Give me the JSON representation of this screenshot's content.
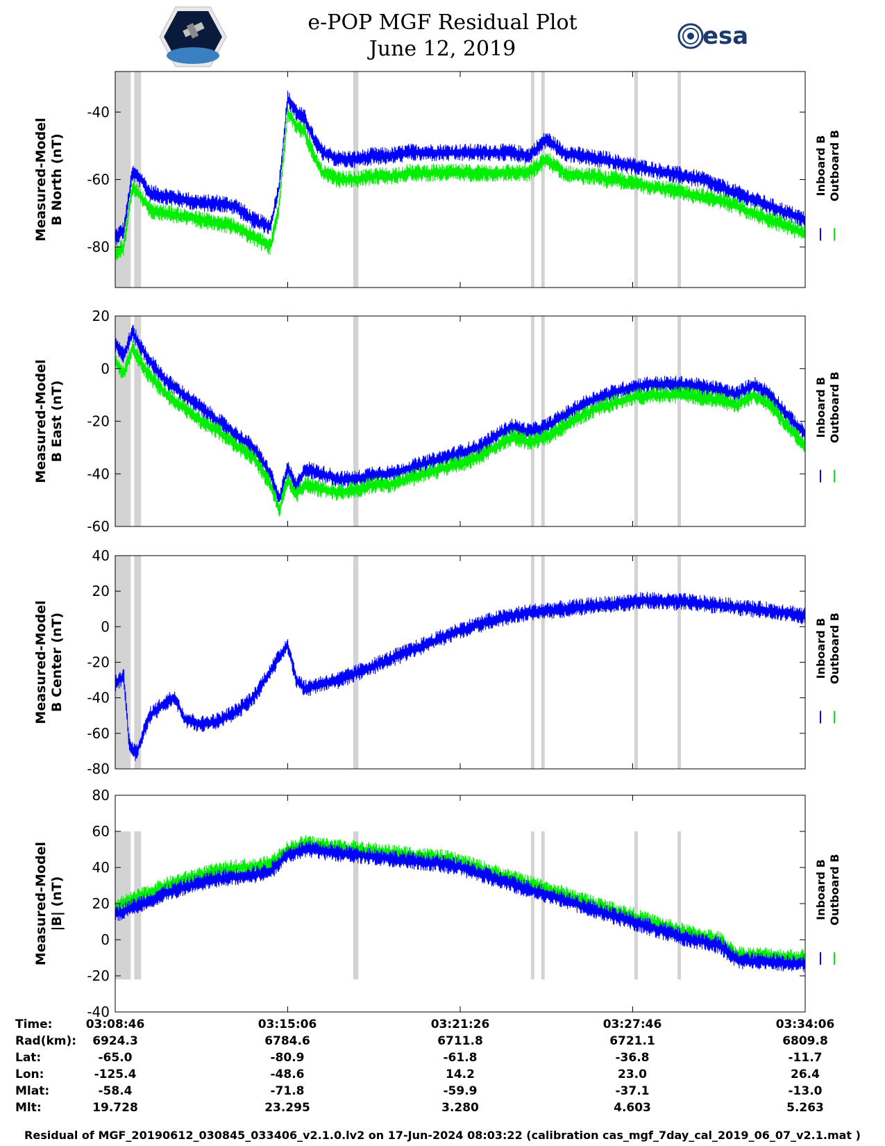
{
  "header": {
    "title": "e-POP MGF Residual Plot",
    "date": "June 12, 2019",
    "logo_right_text": "esa",
    "logo_left_icon": "cassiope-mission-logo-icon"
  },
  "legend": {
    "inboard": "Inboard B",
    "outboard": "Outboard B",
    "inboard_color": "#0000ff",
    "outboard_color": "#00ee00"
  },
  "chart_data": [
    {
      "type": "line",
      "ylabel_line1": "Measured-Model",
      "ylabel_line2": "B North (nT)",
      "ylim": [
        -92,
        -28
      ],
      "yticks": [
        -40,
        -60,
        -80
      ],
      "series": [
        {
          "name": "Inboard B",
          "t": [
            0,
            5,
            10,
            15,
            20,
            30,
            40,
            50,
            60,
            70,
            80,
            90,
            95,
            100,
            105,
            110,
            115,
            120,
            130,
            140,
            150,
            160,
            170,
            180,
            190,
            200,
            210,
            220,
            230,
            240,
            250,
            260,
            270,
            280,
            285,
            290,
            300,
            310,
            320,
            330,
            340,
            350,
            360,
            370,
            380,
            390,
            400
          ],
          "y": [
            -77,
            -75,
            -58,
            -60,
            -64,
            -65,
            -66,
            -67,
            -67,
            -68,
            -72,
            -74,
            -62,
            -36,
            -40,
            -42,
            -48,
            -52,
            -54,
            -54,
            -53,
            -53,
            -52,
            -52,
            -52,
            -52,
            -52,
            -52,
            -52,
            -53,
            -48,
            -52,
            -53,
            -54,
            -54,
            -55,
            -56,
            -57,
            -58,
            -59,
            -60,
            -62,
            -64,
            -66,
            -68,
            -70,
            -72
          ]
        },
        {
          "name": "Outboard B",
          "t": [
            0,
            5,
            10,
            15,
            20,
            30,
            40,
            50,
            60,
            70,
            80,
            90,
            95,
            100,
            105,
            110,
            115,
            120,
            130,
            140,
            150,
            160,
            170,
            180,
            190,
            200,
            210,
            220,
            230,
            240,
            250,
            260,
            270,
            280,
            285,
            290,
            300,
            310,
            320,
            330,
            340,
            350,
            360,
            370,
            380,
            390,
            400
          ],
          "y": [
            -82,
            -80,
            -62,
            -65,
            -69,
            -70,
            -71,
            -72,
            -73,
            -74,
            -77,
            -80,
            -68,
            -40,
            -44,
            -46,
            -53,
            -58,
            -60,
            -60,
            -59,
            -59,
            -58,
            -58,
            -58,
            -58,
            -58,
            -58,
            -58,
            -58,
            -54,
            -58,
            -59,
            -59,
            -60,
            -60,
            -61,
            -62,
            -63,
            -64,
            -65,
            -66,
            -68,
            -70,
            -72,
            -74,
            -76
          ]
        }
      ]
    },
    {
      "type": "line",
      "ylabel_line1": "Measured-Model",
      "ylabel_line2": "B East (nT)",
      "ylim": [
        -60,
        20
      ],
      "yticks": [
        20,
        0,
        -20,
        -40,
        -60
      ],
      "series": [
        {
          "name": "Inboard B",
          "t": [
            0,
            5,
            10,
            15,
            20,
            30,
            40,
            50,
            60,
            70,
            80,
            90,
            95,
            100,
            105,
            110,
            120,
            130,
            140,
            150,
            160,
            170,
            180,
            190,
            200,
            210,
            220,
            230,
            240,
            250,
            260,
            270,
            280,
            290,
            300,
            310,
            320,
            330,
            340,
            350,
            360,
            370,
            380,
            390,
            400
          ],
          "y": [
            10,
            5,
            14,
            8,
            3,
            -5,
            -10,
            -15,
            -20,
            -25,
            -30,
            -40,
            -50,
            -38,
            -45,
            -38,
            -40,
            -42,
            -42,
            -40,
            -40,
            -38,
            -36,
            -34,
            -32,
            -30,
            -26,
            -22,
            -24,
            -22,
            -18,
            -14,
            -11,
            -9,
            -7,
            -6,
            -6,
            -6,
            -7,
            -8,
            -10,
            -6,
            -10,
            -18,
            -25
          ]
        },
        {
          "name": "Outboard B",
          "t": [
            0,
            5,
            10,
            15,
            20,
            30,
            40,
            50,
            60,
            70,
            80,
            90,
            95,
            100,
            105,
            110,
            120,
            130,
            140,
            150,
            160,
            170,
            180,
            190,
            200,
            210,
            220,
            230,
            240,
            250,
            260,
            270,
            280,
            290,
            300,
            310,
            320,
            330,
            340,
            350,
            360,
            370,
            380,
            390,
            400
          ],
          "y": [
            3,
            -2,
            8,
            2,
            -3,
            -10,
            -15,
            -20,
            -24,
            -29,
            -34,
            -44,
            -54,
            -42,
            -48,
            -44,
            -46,
            -47,
            -46,
            -44,
            -44,
            -42,
            -40,
            -38,
            -36,
            -34,
            -30,
            -26,
            -28,
            -26,
            -22,
            -18,
            -15,
            -13,
            -11,
            -10,
            -10,
            -10,
            -11,
            -12,
            -14,
            -10,
            -14,
            -22,
            -30
          ]
        }
      ]
    },
    {
      "type": "line",
      "ylabel_line1": "Measured-Model",
      "ylabel_line2": "B Center (nT)",
      "ylim": [
        -80,
        40
      ],
      "yticks": [
        40,
        20,
        0,
        -20,
        -40,
        -60,
        -80
      ],
      "series": [
        {
          "name": "Inboard B",
          "t": [
            0,
            5,
            8,
            12,
            20,
            30,
            35,
            40,
            50,
            60,
            70,
            80,
            90,
            100,
            105,
            110,
            120,
            130,
            140,
            150,
            160,
            170,
            180,
            190,
            200,
            210,
            220,
            230,
            240,
            250,
            260,
            270,
            280,
            290,
            300,
            310,
            320,
            330,
            340,
            350,
            360,
            370,
            380,
            390,
            400
          ],
          "y": [
            -32,
            -28,
            -65,
            -72,
            -50,
            -42,
            -40,
            -52,
            -55,
            -53,
            -48,
            -40,
            -25,
            -10,
            -30,
            -35,
            -32,
            -30,
            -26,
            -22,
            -18,
            -14,
            -10,
            -6,
            -2,
            1,
            4,
            6,
            8,
            9,
            10,
            11,
            12,
            13,
            14,
            15,
            14,
            14,
            13,
            12,
            11,
            10,
            9,
            8,
            6
          ]
        }
      ]
    },
    {
      "type": "line",
      "ylabel_line1": "Measured-Model",
      "ylabel_line2": "|B| (nT)",
      "ylim": [
        -40,
        80
      ],
      "yticks": [
        80,
        60,
        40,
        20,
        0,
        -20,
        -40
      ],
      "series": [
        {
          "name": "Outboard B",
          "t": [
            0,
            10,
            20,
            30,
            40,
            50,
            60,
            70,
            80,
            90,
            100,
            110,
            120,
            130,
            140,
            150,
            160,
            170,
            180,
            190,
            200,
            210,
            220,
            230,
            240,
            250,
            260,
            270,
            280,
            290,
            300,
            310,
            320,
            330,
            340,
            350,
            360,
            370,
            380,
            390,
            400
          ],
          "y": [
            18,
            22,
            26,
            30,
            33,
            36,
            38,
            40,
            40,
            42,
            50,
            53,
            52,
            51,
            50,
            49,
            48,
            47,
            46,
            45,
            43,
            40,
            37,
            34,
            31,
            28,
            25,
            22,
            19,
            16,
            13,
            10,
            7,
            4,
            2,
            0,
            -8,
            -9,
            -9,
            -10,
            -10
          ]
        },
        {
          "name": "Inboard B",
          "t": [
            0,
            10,
            20,
            30,
            40,
            50,
            60,
            70,
            80,
            90,
            100,
            110,
            120,
            130,
            140,
            150,
            160,
            170,
            180,
            190,
            200,
            210,
            220,
            230,
            240,
            250,
            260,
            270,
            280,
            290,
            300,
            310,
            320,
            330,
            340,
            350,
            360,
            370,
            380,
            390,
            400
          ],
          "y": [
            14,
            18,
            22,
            26,
            29,
            32,
            34,
            35,
            36,
            38,
            47,
            50,
            49,
            48,
            47,
            46,
            45,
            44,
            43,
            42,
            40,
            37,
            34,
            31,
            28,
            25,
            22,
            19,
            16,
            13,
            10,
            7,
            4,
            1,
            -1,
            -3,
            -11,
            -12,
            -12,
            -13,
            -13
          ]
        }
      ]
    }
  ],
  "x_axis": {
    "times": [
      "03:08:46",
      "03:15:06",
      "03:21:26",
      "03:27:46",
      "03:34:06"
    ]
  },
  "info_table": {
    "rows": [
      {
        "label": "Time:",
        "values": [
          "03:08:46",
          "03:15:06",
          "03:21:26",
          "03:27:46",
          "03:34:06"
        ]
      },
      {
        "label": "Rad(km):",
        "values": [
          "6924.3",
          "6784.6",
          "6711.8",
          "6721.1",
          "6809.8"
        ]
      },
      {
        "label": "Lat:",
        "values": [
          "-65.0",
          "-80.9",
          "-61.8",
          "-36.8",
          "-11.7"
        ]
      },
      {
        "label": "Lon:",
        "values": [
          "-125.4",
          "-48.6",
          "14.2",
          "23.0",
          "26.4"
        ]
      },
      {
        "label": "Mlat:",
        "values": [
          "-58.4",
          "-71.8",
          "-59.9",
          "-37.1",
          "-13.0"
        ]
      },
      {
        "label": "Mlt:",
        "values": [
          "19.728",
          "23.295",
          "3.280",
          "4.603",
          "5.263"
        ]
      }
    ]
  },
  "footer": "Residual of MGF_20190612_030845_033406_v2.1.0.lv2 on 17-Jun-2024 08:03:22 (calibration cas_mgf_7day_cal_2019_06_07_v2.1.mat )"
}
